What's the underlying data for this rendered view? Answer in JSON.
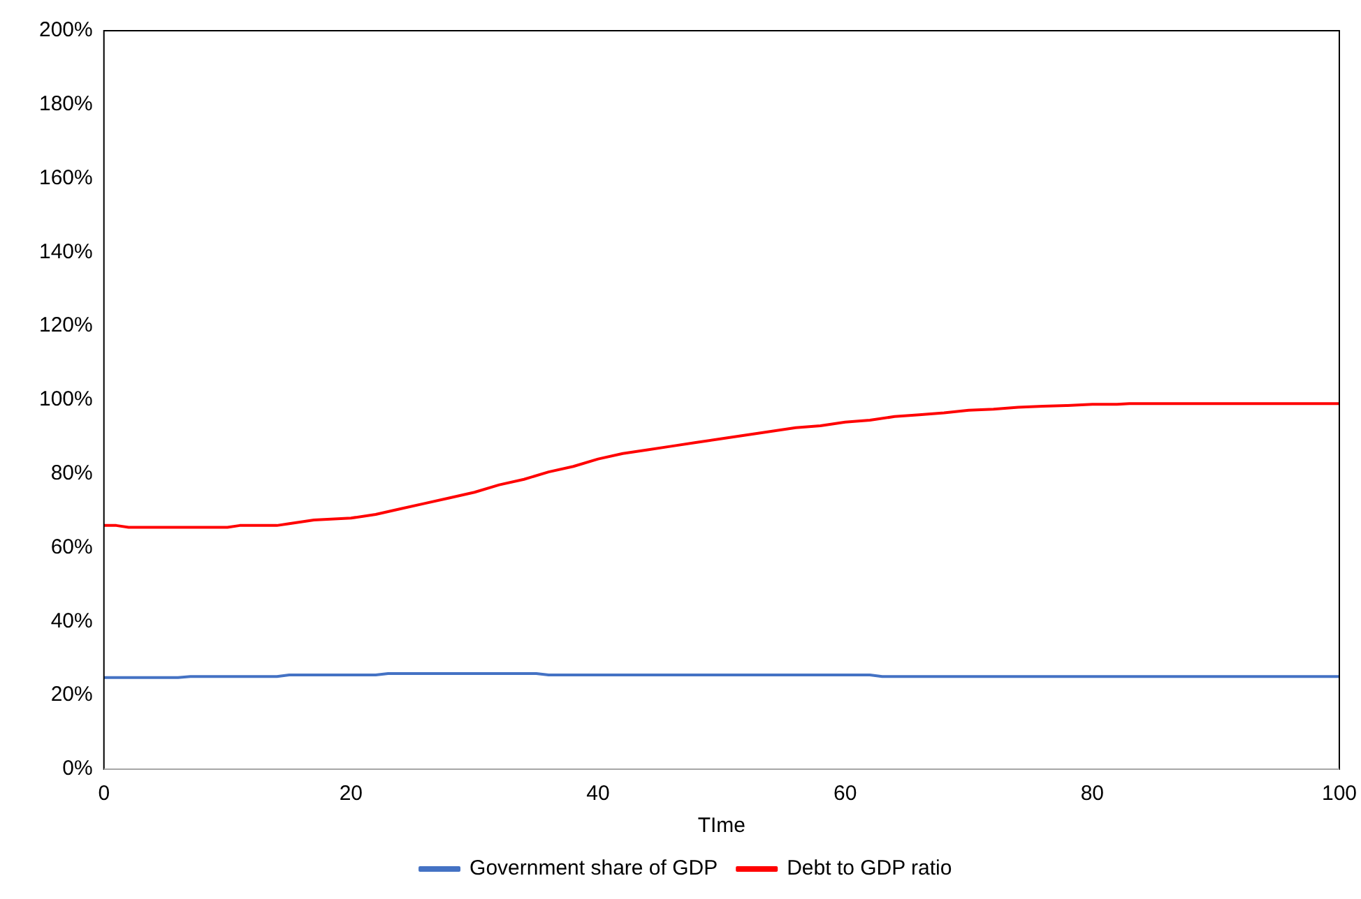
{
  "chart_data": {
    "type": "line",
    "xlabel": "TIme",
    "xlim": [
      0,
      100
    ],
    "xticks": [
      0,
      20,
      40,
      60,
      80,
      100
    ],
    "ylim": [
      0,
      200
    ],
    "yticks": [
      {
        "value": 0,
        "label": "0%"
      },
      {
        "value": 20,
        "label": "20%"
      },
      {
        "value": 40,
        "label": "40%"
      },
      {
        "value": 60,
        "label": "60%"
      },
      {
        "value": 80,
        "label": "80%"
      },
      {
        "value": 100,
        "label": "100%"
      },
      {
        "value": 120,
        "label": "120%"
      },
      {
        "value": 140,
        "label": "140%"
      },
      {
        "value": 160,
        "label": "160%"
      },
      {
        "value": 180,
        "label": "180%"
      },
      {
        "value": 200,
        "label": "200%"
      }
    ],
    "grid": false,
    "legend": "bottom",
    "marker": "none",
    "line_style": "solid",
    "series": [
      {
        "name": "Government share of GDP",
        "color": "#4472c4",
        "x": [
          0,
          6,
          7,
          14,
          15,
          22,
          23,
          35,
          36,
          62,
          63,
          100
        ],
        "values": [
          24.8,
          24.8,
          25.1,
          25.1,
          25.5,
          25.5,
          25.9,
          25.9,
          25.5,
          25.5,
          25.1,
          25.1
        ]
      },
      {
        "name": "Debt to GDP ratio",
        "color": "#ff0000",
        "x": [
          0,
          1,
          2,
          10,
          11,
          14,
          15,
          17,
          20,
          22,
          24,
          26,
          28,
          30,
          32,
          34,
          36,
          38,
          40,
          42,
          44,
          46,
          48,
          50,
          52,
          54,
          56,
          58,
          60,
          62,
          64,
          66,
          68,
          70,
          72,
          74,
          76,
          78,
          80,
          82,
          83,
          100
        ],
        "values": [
          66,
          66,
          65.5,
          65.5,
          66,
          66,
          66.5,
          67.5,
          68,
          69,
          70.5,
          72,
          73.5,
          75,
          77,
          78.5,
          80.5,
          82,
          84,
          85.5,
          86.5,
          87.5,
          88.5,
          89.5,
          90.5,
          91.5,
          92.5,
          93,
          94,
          94.5,
          95.5,
          96,
          96.5,
          97.2,
          97.5,
          98,
          98.3,
          98.5,
          98.8,
          98.8,
          99,
          99
        ]
      }
    ]
  }
}
